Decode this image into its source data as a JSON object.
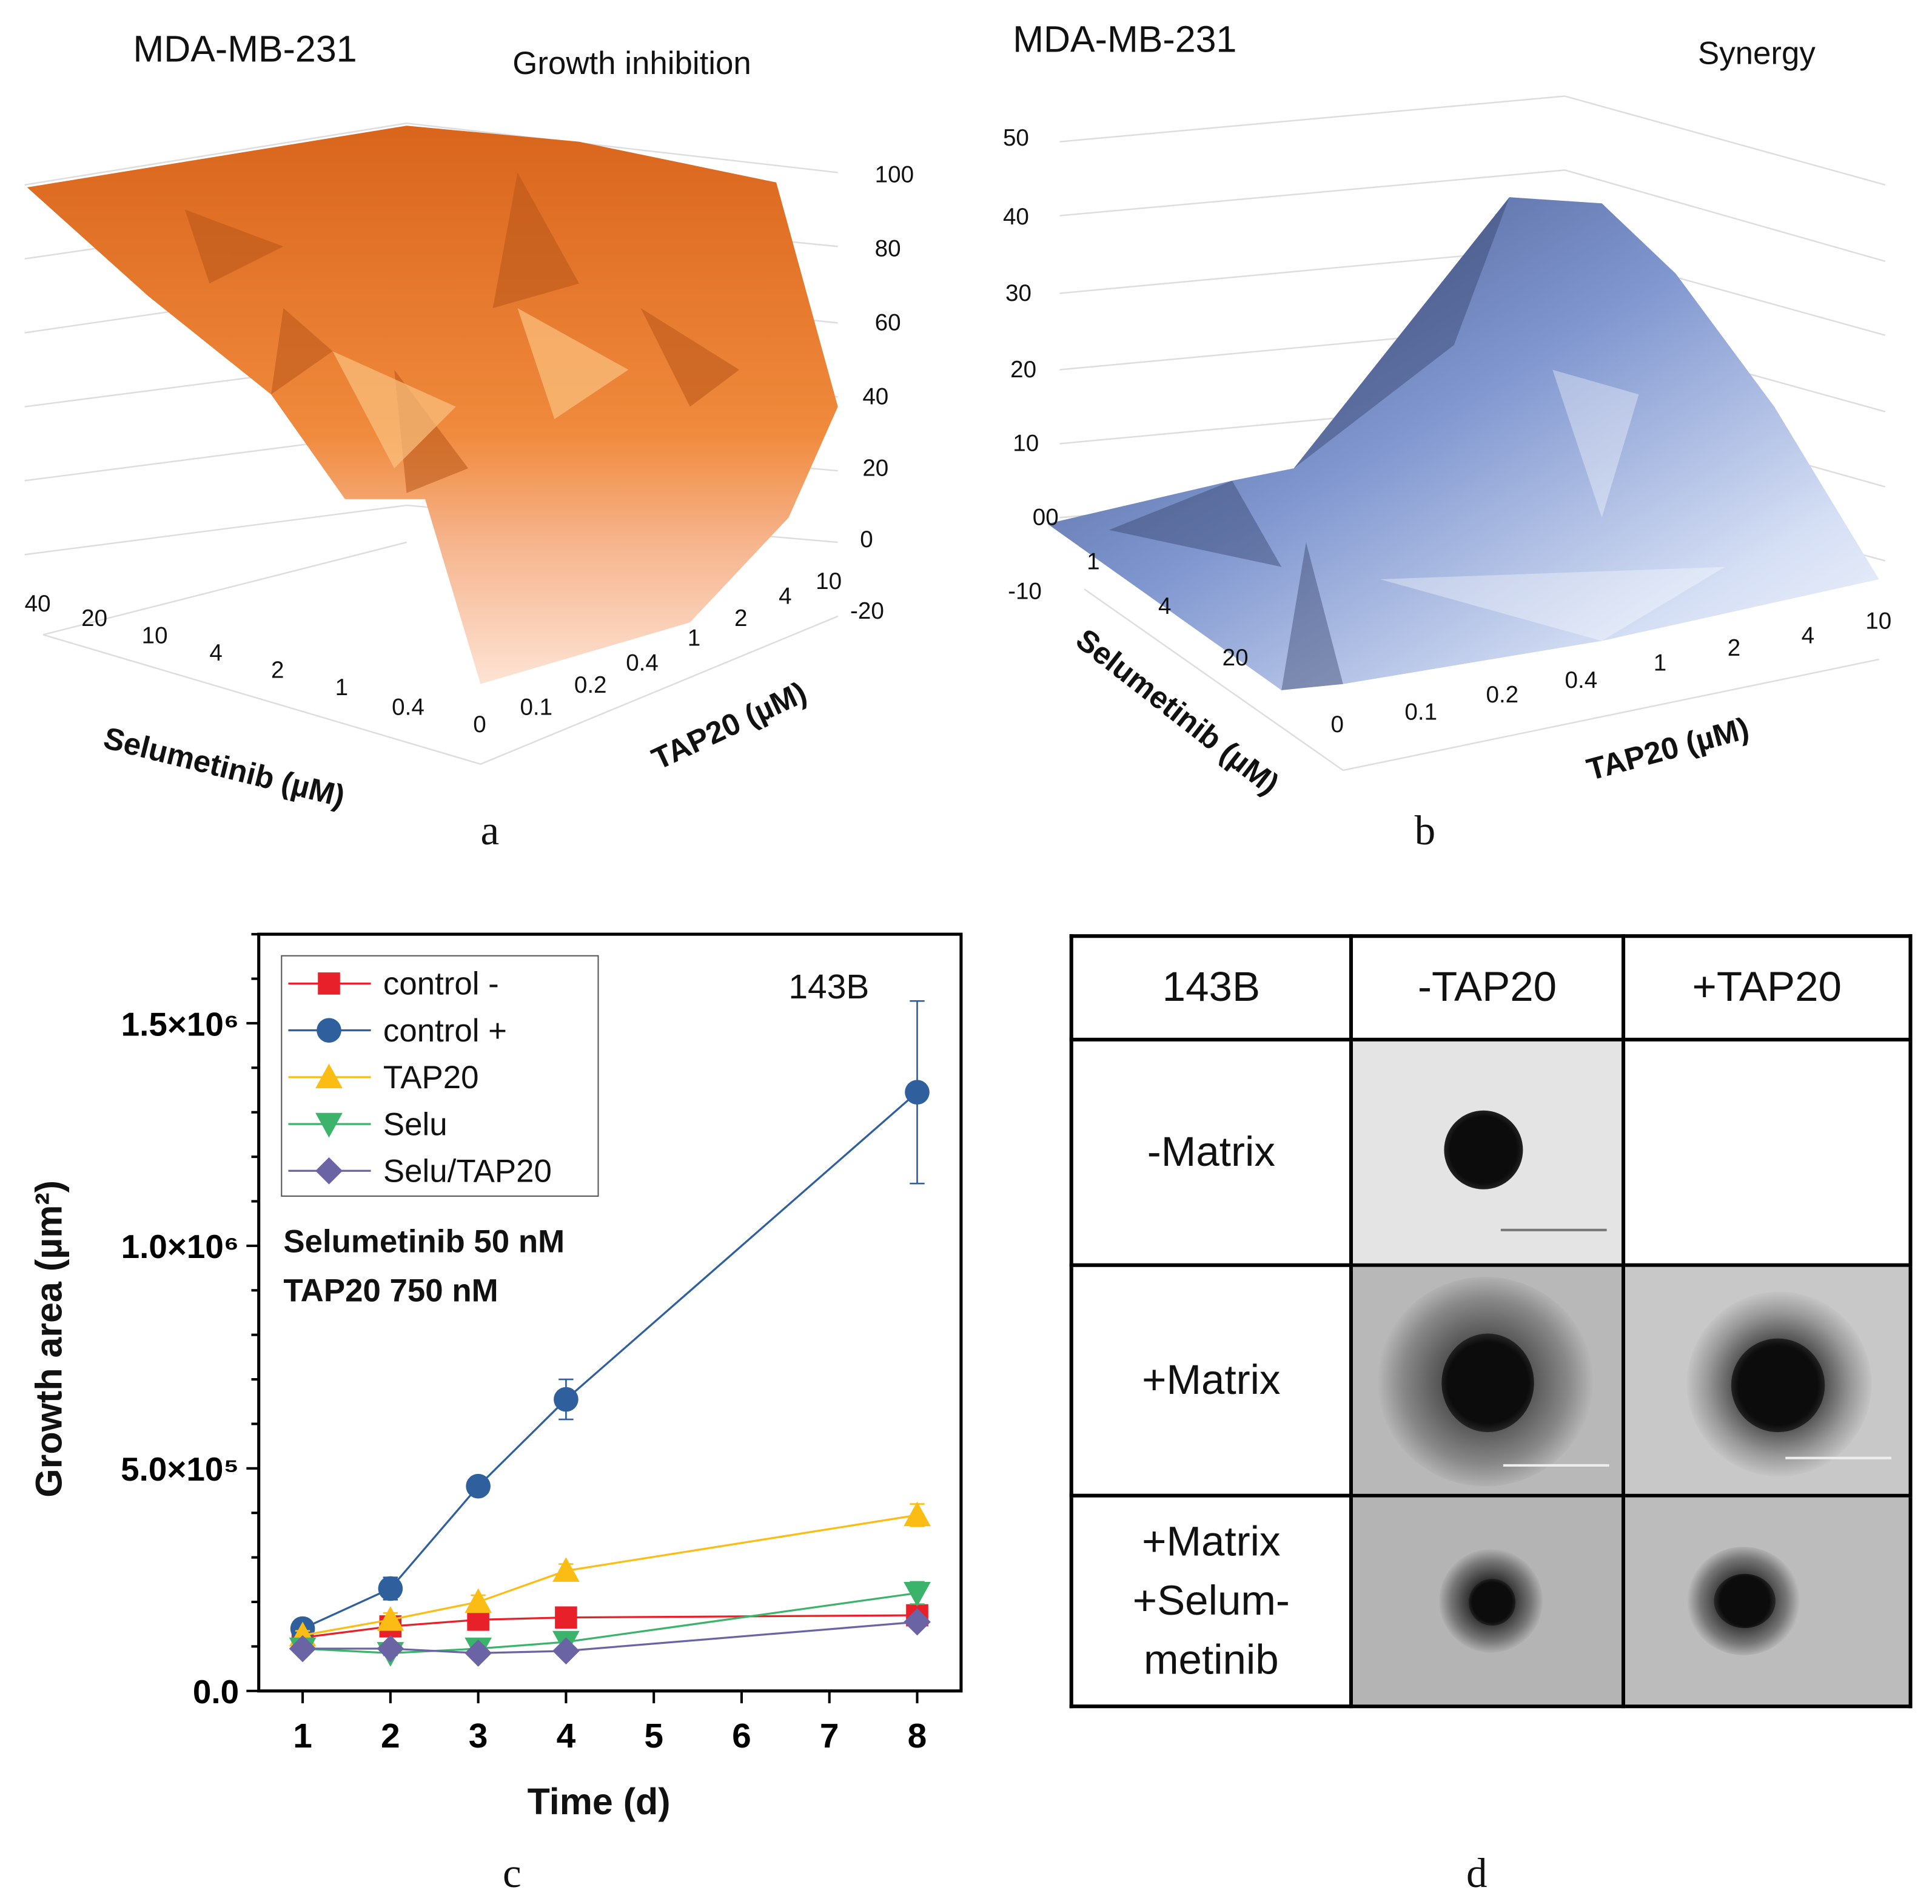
{
  "panel_a": {
    "cell_line": "MDA-MB-231",
    "title": "Growth inhibition",
    "z_ticks": [
      "100",
      "80",
      "60",
      "40",
      "20",
      "0",
      "-20"
    ],
    "selu_ticks": [
      "40",
      "20",
      "10",
      "4",
      "2",
      "1",
      "0.4",
      "0"
    ],
    "tap_ticks": [
      "0.1",
      "0.2",
      "0.4",
      "1",
      "2",
      "4",
      "10"
    ],
    "selu_label": "Selumetinib (µM)",
    "tap_label": "TAP20 (µM)",
    "letter": "a",
    "color": "#ea7a2c"
  },
  "panel_b": {
    "cell_line": "MDA-MB-231",
    "title": "Synergy",
    "z_ticks": [
      "50",
      "40",
      "30",
      "20",
      "10",
      "00",
      "-10"
    ],
    "selu_ticks": [
      "1",
      "4",
      "20"
    ],
    "tap_ticks": [
      "0",
      "0.1",
      "0.2",
      "0.4",
      "1",
      "2",
      "4",
      "10"
    ],
    "selu_label": "Selumetinib (µM)",
    "tap_label": "TAP20 (µM)",
    "letter": "b",
    "color": "#6f86c4"
  },
  "chart_data": {
    "type": "line",
    "title": "143B",
    "annotation": [
      "Selumetinib 50 nM",
      "TAP20 750 nM"
    ],
    "xlabel": "Time (d)",
    "ylabel": "Growth area (µm²)",
    "xlim": [
      0.5,
      8.5
    ],
    "ylim": [
      0,
      1700000
    ],
    "x_ticks": [
      "1",
      "2",
      "3",
      "4",
      "5",
      "6",
      "7",
      "8"
    ],
    "y_ticks": [
      {
        "v": 0,
        "label": "0.0"
      },
      {
        "v": 500000,
        "label": "5.0×10⁵"
      },
      {
        "v": 1000000,
        "label": "1.0×10⁶"
      },
      {
        "v": 1500000,
        "label": "1.5×10⁶"
      }
    ],
    "legend_position": "top-left",
    "x": [
      1,
      2,
      3,
      4,
      8
    ],
    "series": [
      {
        "name": "control -",
        "color": "#e8202a",
        "marker": "square",
        "values": [
          120000,
          145000,
          160000,
          165000,
          170000
        ]
      },
      {
        "name": "control +",
        "color": "#2f5f9c",
        "marker": "circle",
        "values": [
          140000,
          230000,
          460000,
          655000,
          1345000
        ],
        "error": [
          10000,
          25000,
          15000,
          45000,
          205000
        ]
      },
      {
        "name": "TAP20",
        "color": "#fbbd14",
        "marker": "triangle-up",
        "values": [
          125000,
          160000,
          200000,
          270000,
          395000
        ],
        "error": [
          10000,
          15000,
          15000,
          15000,
          25000
        ]
      },
      {
        "name": "Selu",
        "color": "#3cb36b",
        "marker": "triangle-down",
        "values": [
          95000,
          85000,
          95000,
          110000,
          220000
        ],
        "error": [
          5000,
          5000,
          5000,
          10000,
          25000
        ]
      },
      {
        "name": "Selu/TAP20",
        "color": "#6a64a4",
        "marker": "diamond",
        "values": [
          95000,
          95000,
          85000,
          90000,
          155000
        ]
      }
    ],
    "letter": "c"
  },
  "panel_d": {
    "corner": "143B",
    "cols": [
      "-TAP20",
      "+TAP20"
    ],
    "rows": [
      "-Matrix",
      "+Matrix",
      "+Matrix\n+Selum-\nmetinib"
    ],
    "row3_lines": [
      "+Matrix",
      "+Selum-",
      "metinib"
    ],
    "letter": "d"
  }
}
